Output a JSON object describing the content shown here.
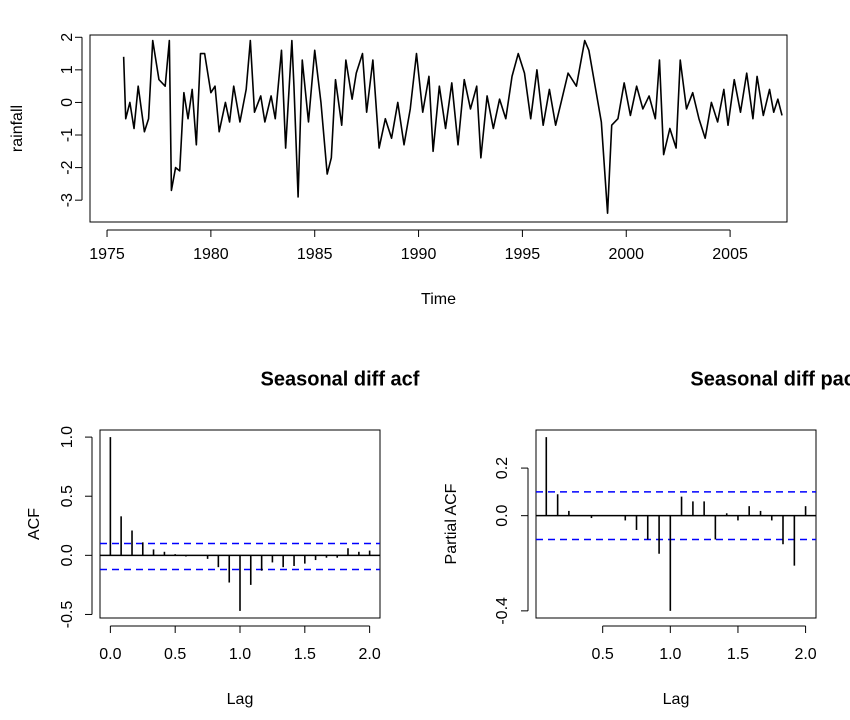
{
  "chart_data": [
    {
      "type": "line",
      "x_label": "Time",
      "y_label": "rainfall",
      "color": "#000000",
      "x": [
        1975.8,
        1975.9,
        1976.1,
        1976.3,
        1976.5,
        1976.8,
        1977.0,
        1977.2,
        1977.5,
        1977.8,
        1978.0,
        1978.1,
        1978.3,
        1978.5,
        1978.7,
        1978.9,
        1979.1,
        1979.3,
        1979.5,
        1979.7,
        1980.0,
        1980.2,
        1980.4,
        1980.7,
        1980.9,
        1981.1,
        1981.4,
        1981.7,
        1981.9,
        1982.1,
        1982.4,
        1982.6,
        1982.9,
        1983.1,
        1983.4,
        1983.6,
        1983.9,
        1984.0,
        1984.2,
        1984.4,
        1984.7,
        1985.0,
        1985.3,
        1985.6,
        1985.8,
        1986.0,
        1986.3,
        1986.5,
        1986.8,
        1987.0,
        1987.3,
        1987.5,
        1987.8,
        1988.1,
        1988.4,
        1988.7,
        1989.0,
        1989.3,
        1989.6,
        1989.9,
        1990.2,
        1990.5,
        1990.7,
        1991.0,
        1991.3,
        1991.6,
        1991.9,
        1992.2,
        1992.5,
        1992.8,
        1993.0,
        1993.3,
        1993.6,
        1993.9,
        1994.2,
        1994.5,
        1994.8,
        1995.1,
        1995.4,
        1995.7,
        1996.0,
        1996.3,
        1996.6,
        1996.9,
        1997.2,
        1997.6,
        1998.0,
        1998.2,
        1998.5,
        1998.8,
        1999.1,
        1999.3,
        1999.6,
        1999.9,
        2000.2,
        2000.5,
        2000.8,
        2001.1,
        2001.4,
        2001.6,
        2001.8,
        2002.1,
        2002.4,
        2002.6,
        2002.9,
        2003.2,
        2003.5,
        2003.8,
        2004.1,
        2004.4,
        2004.7,
        2004.9,
        2005.2,
        2005.5,
        2005.8,
        2006.1,
        2006.3,
        2006.6,
        2006.9,
        2007.1,
        2007.3,
        2007.5
      ],
      "values": [
        1.4,
        -0.5,
        0.0,
        -0.8,
        0.5,
        -0.9,
        -0.5,
        1.9,
        0.7,
        0.5,
        1.9,
        -2.7,
        -2.0,
        -2.1,
        0.3,
        -0.5,
        0.4,
        -1.3,
        1.5,
        1.5,
        0.3,
        0.5,
        -0.9,
        0.0,
        -0.6,
        0.5,
        -0.6,
        0.4,
        1.9,
        -0.3,
        0.2,
        -0.6,
        0.2,
        -0.5,
        1.6,
        -1.4,
        1.9,
        0.5,
        -2.9,
        1.3,
        -0.6,
        1.6,
        0.0,
        -2.2,
        -1.7,
        0.7,
        -0.7,
        1.3,
        0.1,
        0.9,
        1.5,
        -0.3,
        1.3,
        -1.4,
        -0.5,
        -1.1,
        0.0,
        -1.3,
        -0.2,
        1.5,
        -0.3,
        0.8,
        -1.5,
        0.5,
        -0.8,
        0.6,
        -1.3,
        0.7,
        -0.2,
        0.5,
        -1.7,
        0.2,
        -0.8,
        0.1,
        -0.5,
        0.8,
        1.5,
        0.9,
        -0.5,
        1.0,
        -0.7,
        0.4,
        -0.7,
        0.1,
        0.9,
        0.5,
        1.9,
        1.6,
        0.5,
        -0.6,
        -3.4,
        -0.7,
        -0.5,
        0.6,
        -0.4,
        0.5,
        -0.2,
        0.2,
        -0.5,
        1.3,
        -1.6,
        -0.8,
        -1.4,
        1.3,
        -0.2,
        0.3,
        -0.5,
        -1.1,
        0.0,
        -0.6,
        0.4,
        -0.7,
        0.7,
        -0.3,
        0.9,
        -0.5,
        0.8,
        -0.4,
        0.4,
        -0.3,
        0.1,
        -0.4
      ],
      "xlim": [
        1974.18,
        2007.74
      ],
      "ylim": [
        -3.67,
        2.07
      ],
      "xticks": [
        1975,
        1980,
        1985,
        1990,
        1995,
        2000,
        2005
      ],
      "yticks": [
        -3,
        -2,
        -1,
        0,
        1,
        2
      ]
    },
    {
      "type": "stem",
      "title": "Seasonal diff acf",
      "x_label": "Lag",
      "y_label": "ACF",
      "color": "#000000",
      "ci_color": "#0000ff",
      "x": [
        0,
        0.083,
        0.167,
        0.25,
        0.333,
        0.417,
        0.5,
        0.583,
        0.667,
        0.75,
        0.833,
        0.917,
        1,
        1.083,
        1.167,
        1.25,
        1.333,
        1.417,
        1.5,
        1.583,
        1.667,
        1.75,
        1.833,
        1.917,
        2
      ],
      "values": [
        1,
        0.33,
        0.21,
        0.11,
        0.05,
        0.03,
        0.01,
        -0.01,
        0,
        -0.03,
        -0.1,
        -0.23,
        -0.47,
        -0.25,
        -0.13,
        -0.06,
        -0.1,
        -0.09,
        -0.07,
        -0.04,
        -0.02,
        -0.02,
        0.06,
        0.03,
        0.04
      ],
      "ci_lines": [
        0.1,
        -0.12
      ],
      "xlim": [
        -0.08,
        2.08
      ],
      "ylim": [
        -0.53,
        1.06
      ],
      "xticks": [
        {
          "value": 0,
          "label": "0.0"
        },
        0.5,
        {
          "value": 1,
          "label": "1.0"
        },
        1.5,
        {
          "value": 2,
          "label": "2.0"
        }
      ],
      "yticks": [
        -0.5,
        {
          "value": 0,
          "label": "0.0"
        },
        0.5,
        {
          "value": 1,
          "label": "1.0"
        }
      ]
    },
    {
      "type": "stem",
      "title": "Seasonal diff pacf",
      "x_label": "Lag",
      "y_label": "Partial ACF",
      "color": "#000000",
      "ci_color": "#0000ff",
      "x": [
        0.083,
        0.167,
        0.25,
        0.333,
        0.417,
        0.5,
        0.583,
        0.667,
        0.75,
        0.833,
        0.917,
        1,
        1.083,
        1.167,
        1.25,
        1.333,
        1.417,
        1.5,
        1.583,
        1.667,
        1.75,
        1.833,
        1.917,
        2
      ],
      "values": [
        0.33,
        0.09,
        0.02,
        0,
        -0.01,
        0,
        0,
        -0.02,
        -0.06,
        -0.1,
        -0.16,
        -0.4,
        0.08,
        0.06,
        0.06,
        -0.1,
        0.01,
        -0.02,
        0.04,
        0.02,
        -0.02,
        -0.12,
        -0.21,
        0.04
      ],
      "ci_lines": [
        0.1,
        -0.1
      ],
      "xlim": [
        0.007,
        2.077
      ],
      "ylim": [
        -0.43,
        0.36
      ],
      "xticks": [
        0.5,
        {
          "value": 1,
          "label": "1.0"
        },
        1.5,
        {
          "value": 2,
          "label": "2.0"
        }
      ],
      "yticks": [
        -0.4,
        {
          "value": 0,
          "label": "0.0"
        },
        0.2
      ]
    }
  ]
}
